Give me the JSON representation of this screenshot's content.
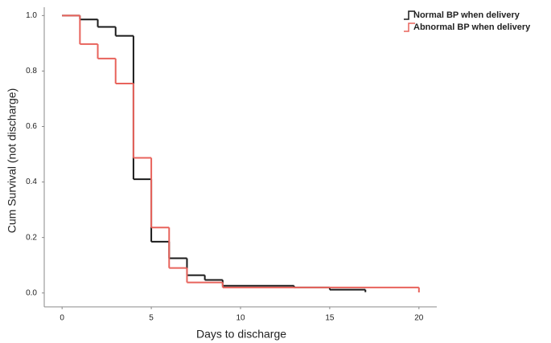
{
  "chart_data": {
    "type": "step",
    "x_label": "Days to discharge",
    "y_label": "Cum Survival (not discharge)",
    "xlim": [
      -1,
      21
    ],
    "ylim": [
      -0.05,
      1.03
    ],
    "xticks": [
      0,
      5,
      10,
      15,
      20
    ],
    "yticks": [
      {
        "value": 0,
        "label": "0.0"
      },
      {
        "value": 0.2,
        "label": "0.2"
      },
      {
        "value": 0.4,
        "label": "0.4"
      },
      {
        "value": 0.6,
        "label": "0.6"
      },
      {
        "value": 0.8,
        "label": "0.8"
      },
      {
        "value": 1,
        "label": "1.0"
      }
    ],
    "grid": false,
    "legend": "top-right",
    "series": [
      {
        "name": "Normal BP when delivery",
        "color": "#1a1a1a",
        "x": [
          0,
          1,
          2,
          3,
          4,
          5,
          6,
          7,
          8,
          9,
          13,
          15,
          17
        ],
        "values": [
          1.0,
          0.986,
          0.959,
          0.927,
          0.41,
          0.185,
          0.125,
          0.064,
          0.047,
          0.026,
          0.02,
          0.012,
          0.003
        ]
      },
      {
        "name": "Abnormal BP when delivery",
        "color": "#e8635c",
        "x": [
          0,
          1,
          2,
          3,
          4,
          5,
          6,
          7,
          9,
          20
        ],
        "values": [
          1.0,
          0.897,
          0.845,
          0.755,
          0.487,
          0.236,
          0.09,
          0.038,
          0.02,
          0.002
        ]
      }
    ]
  }
}
